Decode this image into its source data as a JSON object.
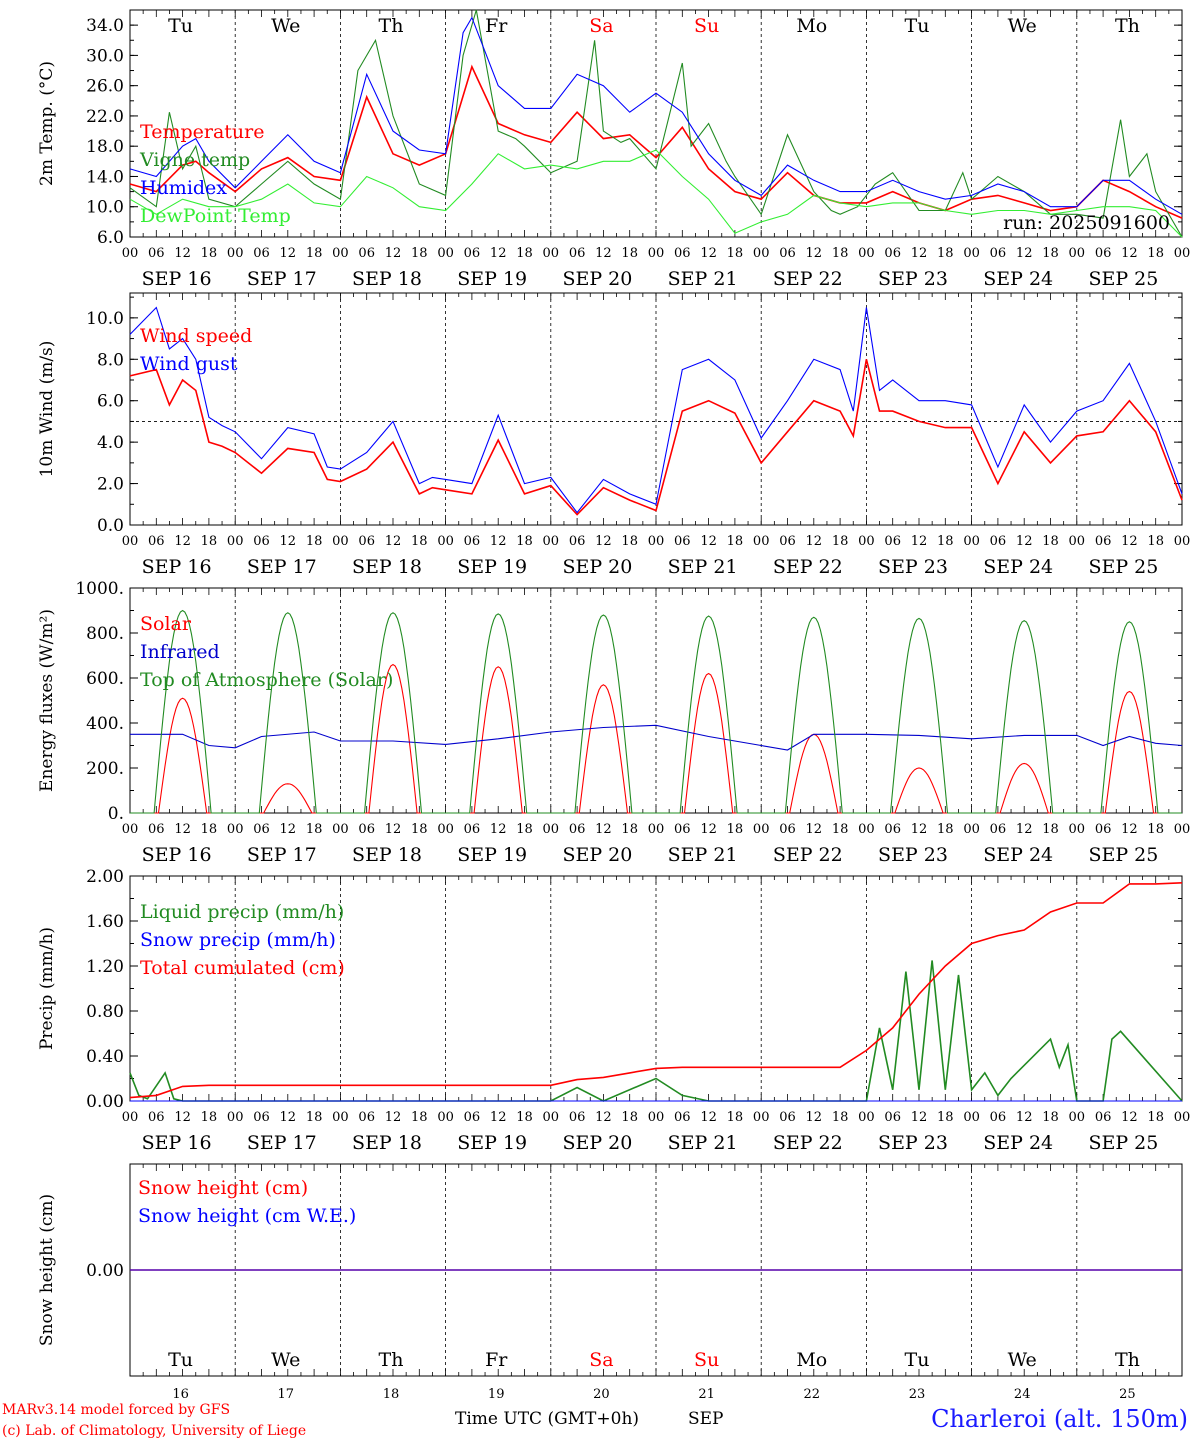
{
  "location_label": "Charleroi (alt. 150m)",
  "credits": [
    "MARv3.14 model forced by GFS",
    "(c) Lab. of Climatology, University of Liege"
  ],
  "run_label": "run: 2025091600",
  "x_axis_title": "Time UTC (GMT+0h)",
  "x_axis_month": "SEP",
  "hour_ticks": [
    "00",
    "06",
    "12",
    "18"
  ],
  "final_tick": "00",
  "dates": [
    "SEP 16",
    "SEP 17",
    "SEP 18",
    "SEP 19",
    "SEP 20",
    "SEP 21",
    "SEP 22",
    "SEP 23",
    "SEP 24",
    "SEP 25"
  ],
  "day_numbers": [
    "16",
    "17",
    "18",
    "19",
    "20",
    "21",
    "22",
    "23",
    "24",
    "25"
  ],
  "weekdays": [
    {
      "label": "Tu",
      "color": "#000000"
    },
    {
      "label": "We",
      "color": "#000000"
    },
    {
      "label": "Th",
      "color": "#000000"
    },
    {
      "label": "Fr",
      "color": "#000000"
    },
    {
      "label": "Sa",
      "color": "#ff0000"
    },
    {
      "label": "Su",
      "color": "#ff0000"
    },
    {
      "label": "Mo",
      "color": "#000000"
    },
    {
      "label": "Tu",
      "color": "#000000"
    },
    {
      "label": "We",
      "color": "#000000"
    },
    {
      "label": "Th",
      "color": "#000000"
    }
  ],
  "chart_data": [
    {
      "type": "line",
      "ylabel": "2m Temp. (°C)",
      "ylim": [
        6.0,
        36.0
      ],
      "yticks": [
        "6.0",
        "10.0",
        "14.0",
        "18.0",
        "22.0",
        "26.0",
        "30.0",
        "34.0"
      ],
      "ytick_values": [
        6,
        10,
        14,
        18,
        22,
        26,
        30,
        34
      ],
      "x_unit": "hours since SEP 16 00 UTC",
      "series": [
        {
          "name": "Temperature",
          "color": "#ff0000",
          "x": [
            0,
            6,
            12,
            15,
            18,
            24,
            30,
            36,
            42,
            48,
            54,
            60,
            66,
            72,
            78,
            84,
            90,
            96,
            102,
            108,
            114,
            120,
            126,
            132,
            138,
            144,
            150,
            156,
            162,
            168,
            174,
            180,
            186,
            192,
            198,
            204,
            210,
            216,
            222,
            228,
            234,
            240
          ],
          "y": [
            13,
            12,
            15.5,
            16,
            14.5,
            12,
            15,
            16.5,
            14,
            13.5,
            24.5,
            17,
            15.5,
            17,
            28.5,
            21,
            19.5,
            18.5,
            22.5,
            19,
            19.5,
            16.5,
            20.5,
            15,
            12,
            11,
            14.5,
            11.5,
            10.5,
            10.5,
            12,
            10.5,
            9.5,
            11,
            11.5,
            10.5,
            9.5,
            10,
            13.5,
            12,
            10,
            8.5
          ]
        },
        {
          "name": "Vigne temp",
          "color": "#228b22",
          "x": [
            0,
            6,
            9,
            12,
            15,
            18,
            24,
            30,
            36,
            42,
            48,
            52,
            56,
            60,
            66,
            72,
            76,
            79,
            84,
            88,
            90,
            96,
            102,
            106,
            108,
            112,
            114,
            120,
            126,
            128,
            132,
            136,
            138,
            144,
            150,
            156,
            160,
            162,
            166,
            170,
            174,
            180,
            186,
            190,
            192,
            198,
            204,
            210,
            216,
            222,
            226,
            228,
            232,
            234,
            240
          ],
          "y": [
            12.5,
            10,
            22.5,
            15,
            18,
            11,
            10,
            13,
            16,
            13,
            11,
            28,
            32,
            22,
            13,
            11.5,
            30,
            36,
            20,
            19,
            18,
            14.5,
            16,
            32,
            20,
            18.5,
            19,
            15,
            29,
            18,
            21,
            16,
            14,
            9,
            19.5,
            12,
            9.5,
            9,
            10,
            13,
            14.5,
            9.5,
            9.5,
            14.5,
            11,
            14,
            12,
            9,
            9,
            8.5,
            21.5,
            14,
            17,
            12,
            6
          ]
        },
        {
          "name": "Humidex",
          "color": "#0000ff",
          "x": [
            0,
            6,
            12,
            15,
            18,
            24,
            30,
            36,
            42,
            48,
            54,
            60,
            66,
            72,
            76,
            78,
            84,
            90,
            96,
            102,
            108,
            114,
            120,
            126,
            132,
            138,
            144,
            150,
            156,
            162,
            168,
            174,
            180,
            186,
            192,
            198,
            204,
            210,
            216,
            222,
            228,
            234,
            240
          ],
          "y": [
            15,
            14,
            18,
            19,
            16,
            12.5,
            16,
            19.5,
            16,
            14.5,
            27.5,
            20,
            17.5,
            17,
            33,
            35,
            26,
            23,
            23,
            27.5,
            26,
            22.5,
            25,
            22.5,
            17,
            13.5,
            11.5,
            15.5,
            13.5,
            12,
            12,
            13.5,
            12,
            11,
            11.5,
            13,
            12,
            10,
            10,
            13.5,
            13.5,
            11,
            9
          ]
        },
        {
          "name": "DewPoint Temp",
          "color": "#33ee33",
          "x": [
            0,
            6,
            12,
            18,
            24,
            30,
            36,
            42,
            48,
            54,
            60,
            66,
            72,
            78,
            84,
            90,
            96,
            102,
            108,
            114,
            120,
            126,
            132,
            138,
            144,
            150,
            156,
            162,
            168,
            174,
            180,
            186,
            192,
            198,
            204,
            210,
            216,
            222,
            228,
            234,
            240
          ],
          "y": [
            11,
            9,
            11,
            10,
            10,
            11,
            13,
            10.5,
            10,
            14,
            12.5,
            10,
            9.5,
            13,
            17,
            15,
            15.5,
            15,
            16,
            16,
            17.5,
            14,
            11,
            6.5,
            8,
            9,
            11.5,
            10.5,
            10,
            10.5,
            10.5,
            9.5,
            9,
            9.5,
            9.5,
            9,
            9.5,
            10,
            10,
            9.5,
            6
          ]
        }
      ]
    },
    {
      "type": "line",
      "ylabel": "10m Wind (m/s)",
      "ylim": [
        0,
        11.2
      ],
      "yticks": [
        "0.0",
        "2.0",
        "4.0",
        "6.0",
        "8.0",
        "10.0"
      ],
      "ytick_values": [
        0,
        2,
        4,
        6,
        8,
        10
      ],
      "reference_line": 5.0,
      "series": [
        {
          "name": "Wind speed",
          "color": "#ff0000",
          "x": [
            0,
            6,
            9,
            12,
            15,
            18,
            21,
            24,
            30,
            36,
            42,
            45,
            48,
            54,
            60,
            66,
            69,
            72,
            78,
            84,
            90,
            96,
            102,
            108,
            114,
            120,
            126,
            132,
            138,
            144,
            150,
            156,
            162,
            165,
            168,
            171,
            174,
            180,
            186,
            192,
            198,
            204,
            210,
            216,
            222,
            228,
            234,
            240
          ],
          "y": [
            7.2,
            7.5,
            5.8,
            7,
            6.5,
            4,
            3.8,
            3.5,
            2.5,
            3.7,
            3.5,
            2.2,
            2.1,
            2.7,
            4,
            1.5,
            1.8,
            1.7,
            1.5,
            4.1,
            1.5,
            1.9,
            0.5,
            1.8,
            1.2,
            0.7,
            5.5,
            6,
            5.4,
            3,
            4.5,
            6,
            5.5,
            4.3,
            8,
            5.5,
            5.5,
            5,
            4.7,
            4.7,
            2,
            4.5,
            3,
            4.3,
            4.5,
            6,
            4.5,
            1.2
          ]
        },
        {
          "name": "Wind gust",
          "color": "#0000ff",
          "x": [
            0,
            6,
            9,
            12,
            15,
            18,
            21,
            24,
            30,
            36,
            42,
            45,
            48,
            54,
            60,
            66,
            69,
            72,
            78,
            84,
            90,
            96,
            102,
            108,
            114,
            120,
            126,
            132,
            138,
            144,
            150,
            156,
            162,
            165,
            168,
            171,
            174,
            180,
            186,
            192,
            198,
            204,
            210,
            216,
            222,
            228,
            234,
            240
          ],
          "y": [
            9.2,
            10.5,
            8.5,
            9,
            8,
            5.2,
            4.8,
            4.5,
            3.2,
            4.7,
            4.4,
            2.8,
            2.7,
            3.5,
            5,
            2,
            2.3,
            2.2,
            2,
            5.3,
            2,
            2.3,
            0.6,
            2.2,
            1.5,
            1,
            7.5,
            8,
            7,
            4.2,
            6,
            8,
            7.5,
            5.5,
            10.5,
            6.5,
            7,
            6,
            6,
            5.8,
            2.8,
            5.8,
            4,
            5.5,
            6,
            7.8,
            5,
            1.5
          ]
        }
      ]
    },
    {
      "type": "line",
      "ylabel": "Energy fluxes (W/m²)",
      "ylim": [
        0,
        1000
      ],
      "yticks": [
        "0.",
        "200.",
        "400.",
        "600.",
        "800.",
        "1000."
      ],
      "ytick_values": [
        0,
        200,
        400,
        600,
        800,
        1000
      ],
      "series": [
        {
          "name": "Solar",
          "color": "#ff0000",
          "daily_peak": [
            510,
            130,
            660,
            650,
            570,
            620,
            350,
            200,
            220,
            540
          ]
        },
        {
          "name": "Infrared",
          "color": "#0000cc",
          "x": [
            0,
            12,
            18,
            24,
            30,
            42,
            48,
            60,
            72,
            84,
            96,
            108,
            120,
            132,
            144,
            150,
            156,
            168,
            180,
            192,
            204,
            216,
            222,
            228,
            234,
            240
          ],
          "y": [
            350,
            350,
            300,
            290,
            340,
            360,
            320,
            320,
            305,
            330,
            360,
            380,
            390,
            340,
            300,
            280,
            350,
            350,
            345,
            330,
            345,
            345,
            300,
            340,
            310,
            300
          ]
        },
        {
          "name": "Top of Atmosphere (Solar)",
          "color": "#228b22",
          "daily_peak": [
            900,
            890,
            890,
            885,
            880,
            875,
            870,
            865,
            855,
            850
          ]
        }
      ]
    },
    {
      "type": "line",
      "ylabel": "Precip (mm/h)",
      "ylim": [
        0,
        2.0
      ],
      "yticks": [
        "0.00",
        "0.40",
        "0.80",
        "1.20",
        "1.60",
        "2.00"
      ],
      "ytick_values": [
        0,
        0.4,
        0.8,
        1.2,
        1.6,
        2.0
      ],
      "series": [
        {
          "name": "Liquid precip (mm/h)",
          "color": "#228b22",
          "x": [
            0,
            2,
            4,
            8,
            10,
            12,
            96,
            102,
            108,
            120,
            126,
            132,
            168,
            171,
            174,
            177,
            180,
            183,
            186,
            189,
            192,
            195,
            198,
            201,
            210,
            212,
            214,
            216,
            222,
            224,
            226,
            240
          ],
          "y": [
            0.25,
            0.05,
            0.02,
            0.25,
            0.02,
            0,
            0,
            0.12,
            0,
            0.2,
            0.05,
            0,
            0,
            0.65,
            0.1,
            1.15,
            0.1,
            1.25,
            0.1,
            1.12,
            0.1,
            0.25,
            0.05,
            0.2,
            0.55,
            0.3,
            0.5,
            0,
            0,
            0.55,
            0.62,
            0
          ]
        },
        {
          "name": "Snow precip (mm/h)",
          "color": "#0000ff",
          "x": [
            0,
            240
          ],
          "y": [
            0,
            0
          ]
        },
        {
          "name": "Total cumulated (cm)",
          "color": "#ff0000",
          "x": [
            0,
            6,
            12,
            18,
            96,
            102,
            108,
            114,
            120,
            126,
            132,
            138,
            150,
            162,
            168,
            174,
            180,
            186,
            192,
            198,
            204,
            210,
            216,
            222,
            228,
            234,
            240
          ],
          "y": [
            0.03,
            0.05,
            0.13,
            0.14,
            0.14,
            0.19,
            0.21,
            0.25,
            0.29,
            0.3,
            0.3,
            0.3,
            0.3,
            0.3,
            0.45,
            0.65,
            0.95,
            1.2,
            1.4,
            1.47,
            1.52,
            1.68,
            1.76,
            1.76,
            1.93,
            1.93,
            1.94
          ]
        }
      ]
    },
    {
      "type": "line",
      "ylabel": "Snow height (cm)",
      "ylim": [
        -1,
        1
      ],
      "yticks": [
        "0.00"
      ],
      "ytick_values": [
        0
      ],
      "series": [
        {
          "name": "Snow height (cm)",
          "color": "#ff0000",
          "x": [
            0,
            240
          ],
          "y": [
            0,
            0
          ]
        },
        {
          "name": "Snow height (cm W.E.)",
          "color": "#0000ff",
          "x": [
            0,
            240
          ],
          "y": [
            0,
            0
          ]
        }
      ]
    }
  ]
}
